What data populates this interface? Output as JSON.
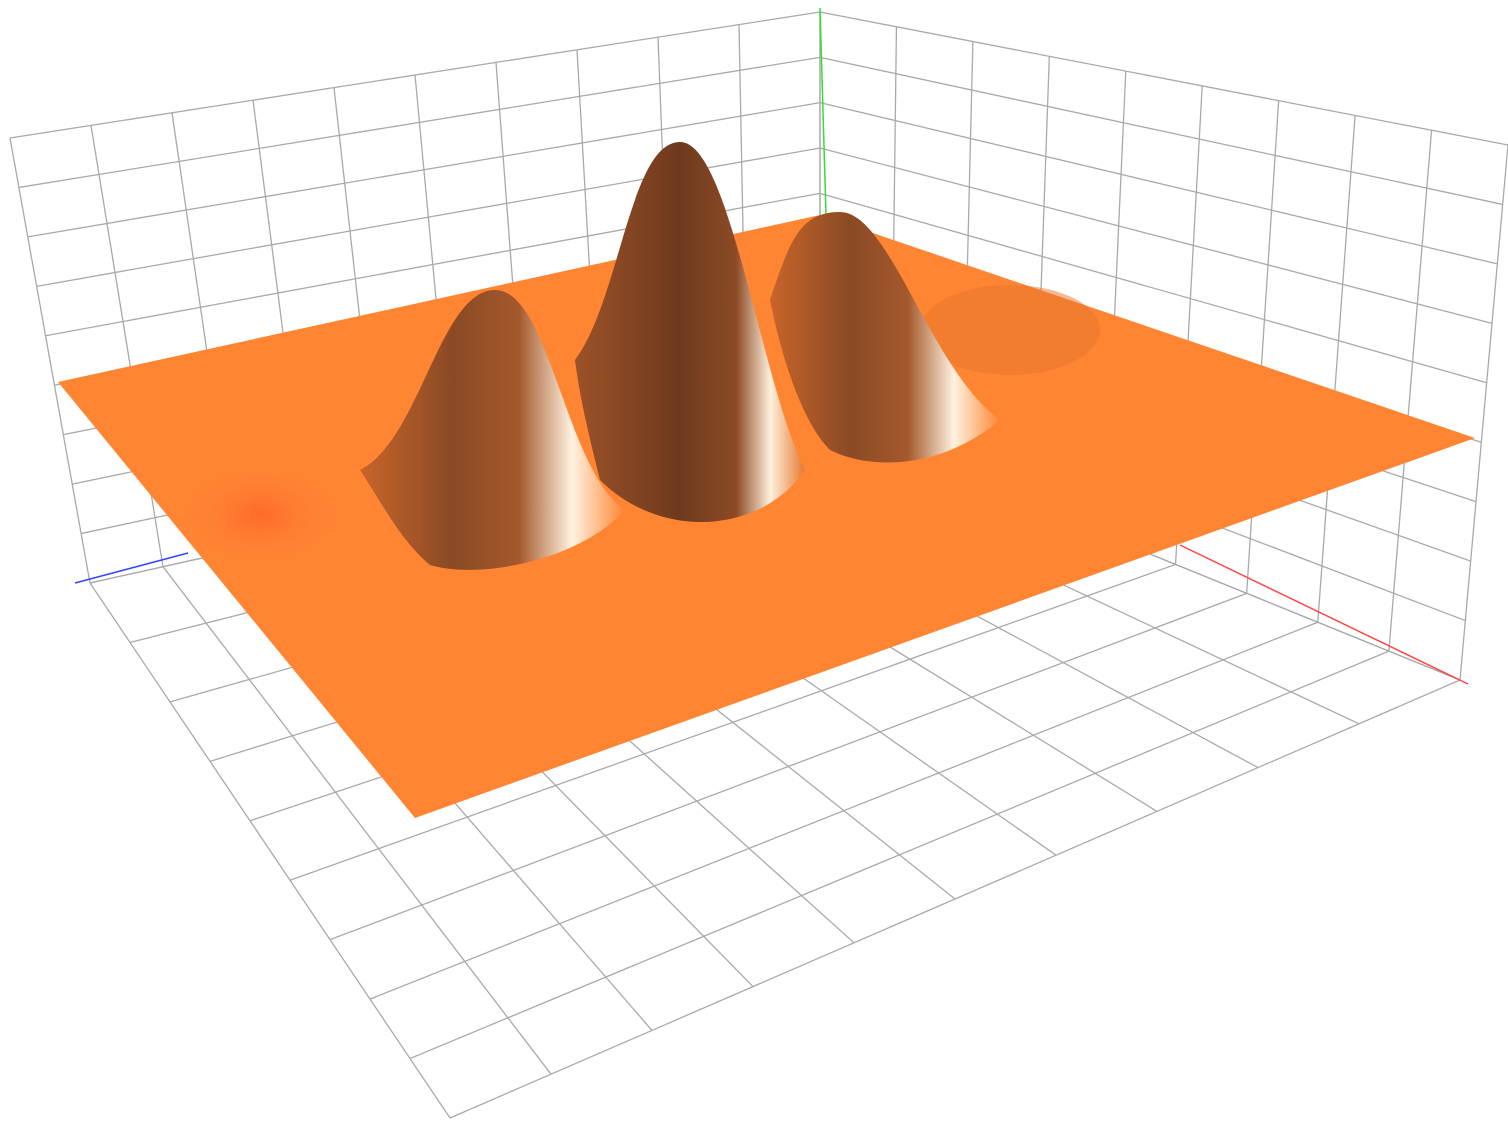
{
  "chart_data": {
    "type": "surface",
    "color": "#ff8533",
    "grid": true
  }
}
